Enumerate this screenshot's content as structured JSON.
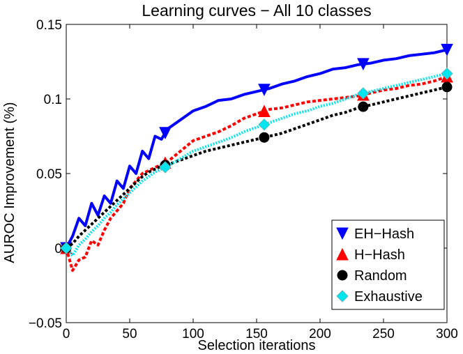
{
  "chart_data": {
    "type": "line",
    "title": "Learning curves − All 10 classes",
    "xlabel": "Selection iterations",
    "ylabel": "AUROC Improvement (%)",
    "xlim": [
      0,
      300
    ],
    "ylim": [
      -0.05,
      0.15
    ],
    "xticks": [
      0,
      50,
      100,
      150,
      200,
      250,
      300
    ],
    "xtick_labels": [
      "0",
      "50",
      "100",
      "150",
      "200",
      "250",
      "300"
    ],
    "yticks": [
      -0.05,
      0,
      0.05,
      0.1,
      0.15
    ],
    "ytick_labels": [
      "−0.05",
      "0",
      "0.05",
      "0.1",
      "0.15"
    ],
    "grid": false,
    "legend_position": "lower-right",
    "series": [
      {
        "name": "EH−Hash",
        "color": "#0000ff",
        "marker": "triangle-down",
        "marker_x": [
          0,
          78,
          156,
          234,
          300
        ],
        "x": [
          0,
          5,
          10,
          15,
          20,
          25,
          30,
          35,
          40,
          45,
          50,
          55,
          60,
          65,
          70,
          75,
          80,
          90,
          100,
          110,
          120,
          130,
          140,
          150,
          160,
          170,
          180,
          190,
          200,
          210,
          220,
          230,
          240,
          250,
          260,
          270,
          280,
          290,
          300
        ],
        "y": [
          0.0,
          0.008,
          0.02,
          0.015,
          0.03,
          0.022,
          0.035,
          0.03,
          0.045,
          0.04,
          0.055,
          0.05,
          0.065,
          0.06,
          0.075,
          0.073,
          0.08,
          0.086,
          0.092,
          0.095,
          0.099,
          0.1,
          0.103,
          0.105,
          0.107,
          0.11,
          0.112,
          0.115,
          0.117,
          0.12,
          0.121,
          0.123,
          0.124,
          0.126,
          0.127,
          0.129,
          0.13,
          0.131,
          0.133
        ]
      },
      {
        "name": "H−Hash",
        "color": "#ff0000",
        "marker": "triangle-up",
        "marker_x": [
          0,
          78,
          156,
          234,
          300
        ],
        "x": [
          0,
          5,
          10,
          15,
          20,
          25,
          30,
          35,
          40,
          45,
          50,
          55,
          60,
          65,
          70,
          75,
          80,
          90,
          100,
          110,
          120,
          130,
          140,
          150,
          160,
          170,
          180,
          190,
          200,
          210,
          220,
          230,
          240,
          250,
          260,
          270,
          280,
          290,
          300
        ],
        "y": [
          0.0,
          -0.015,
          -0.008,
          -0.006,
          0.005,
          0.002,
          0.012,
          0.02,
          0.025,
          0.03,
          0.04,
          0.045,
          0.05,
          0.052,
          0.054,
          0.056,
          0.058,
          0.065,
          0.072,
          0.075,
          0.078,
          0.082,
          0.087,
          0.09,
          0.093,
          0.094,
          0.096,
          0.098,
          0.099,
          0.1,
          0.101,
          0.102,
          0.104,
          0.106,
          0.107,
          0.109,
          0.11,
          0.112,
          0.115
        ]
      },
      {
        "name": "Random",
        "color": "#000000",
        "marker": "circle",
        "marker_x": [
          0,
          78,
          156,
          234,
          300
        ],
        "x": [
          0,
          5,
          10,
          15,
          20,
          25,
          30,
          35,
          40,
          45,
          50,
          55,
          60,
          65,
          70,
          75,
          80,
          90,
          100,
          110,
          120,
          130,
          140,
          150,
          160,
          170,
          180,
          190,
          200,
          210,
          220,
          230,
          240,
          250,
          260,
          270,
          280,
          290,
          300
        ],
        "y": [
          0.0,
          0.003,
          0.008,
          0.012,
          0.016,
          0.02,
          0.024,
          0.028,
          0.032,
          0.036,
          0.04,
          0.044,
          0.048,
          0.051,
          0.053,
          0.055,
          0.056,
          0.059,
          0.062,
          0.065,
          0.067,
          0.069,
          0.071,
          0.073,
          0.075,
          0.077,
          0.08,
          0.083,
          0.086,
          0.089,
          0.091,
          0.094,
          0.096,
          0.098,
          0.1,
          0.102,
          0.104,
          0.106,
          0.108
        ]
      },
      {
        "name": "Exhaustive",
        "color": "#00e5ee",
        "marker": "diamond",
        "marker_x": [
          0,
          78,
          156,
          234,
          300
        ],
        "x": [
          0,
          5,
          10,
          15,
          20,
          25,
          30,
          35,
          40,
          45,
          50,
          55,
          60,
          65,
          70,
          75,
          80,
          90,
          100,
          110,
          120,
          130,
          140,
          150,
          160,
          170,
          180,
          190,
          200,
          210,
          220,
          230,
          240,
          250,
          260,
          270,
          280,
          290,
          300
        ],
        "y": [
          0.0,
          -0.005,
          0.002,
          0.006,
          0.011,
          0.015,
          0.02,
          0.024,
          0.029,
          0.033,
          0.037,
          0.041,
          0.045,
          0.048,
          0.051,
          0.053,
          0.055,
          0.06,
          0.065,
          0.068,
          0.071,
          0.074,
          0.078,
          0.081,
          0.084,
          0.087,
          0.09,
          0.092,
          0.095,
          0.097,
          0.1,
          0.103,
          0.105,
          0.107,
          0.109,
          0.111,
          0.113,
          0.115,
          0.117
        ]
      }
    ]
  }
}
